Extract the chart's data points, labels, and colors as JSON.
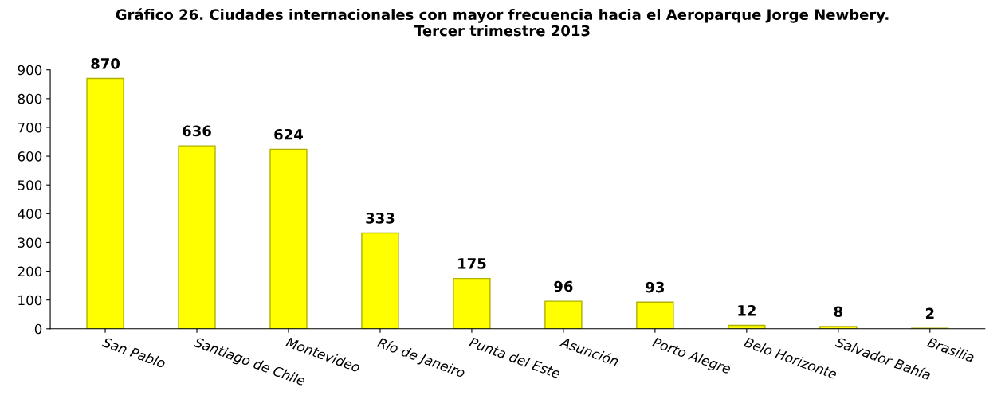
{
  "chart_data": {
    "type": "bar",
    "title": "Gráfico 26. Ciudades internacionales con mayor frecuencia hacia el Aeroparque Jorge Newbery.\nTercer trimestre 2013",
    "categories": [
      "San Pablo",
      "Santiago de Chile",
      "Montevideo",
      "Río de Janeiro",
      "Punta del Este",
      "Asunción",
      "Porto Alegre",
      "Belo Horizonte",
      "Salvador Bahía",
      "Brasilia"
    ],
    "values": [
      870,
      636,
      624,
      333,
      175,
      96,
      93,
      12,
      8,
      2
    ],
    "color": "#ffff00",
    "ylim": [
      0,
      900
    ],
    "yticks": [
      0,
      100,
      200,
      300,
      400,
      500,
      600,
      700,
      800,
      900
    ],
    "data_labels": true,
    "grid": false
  }
}
